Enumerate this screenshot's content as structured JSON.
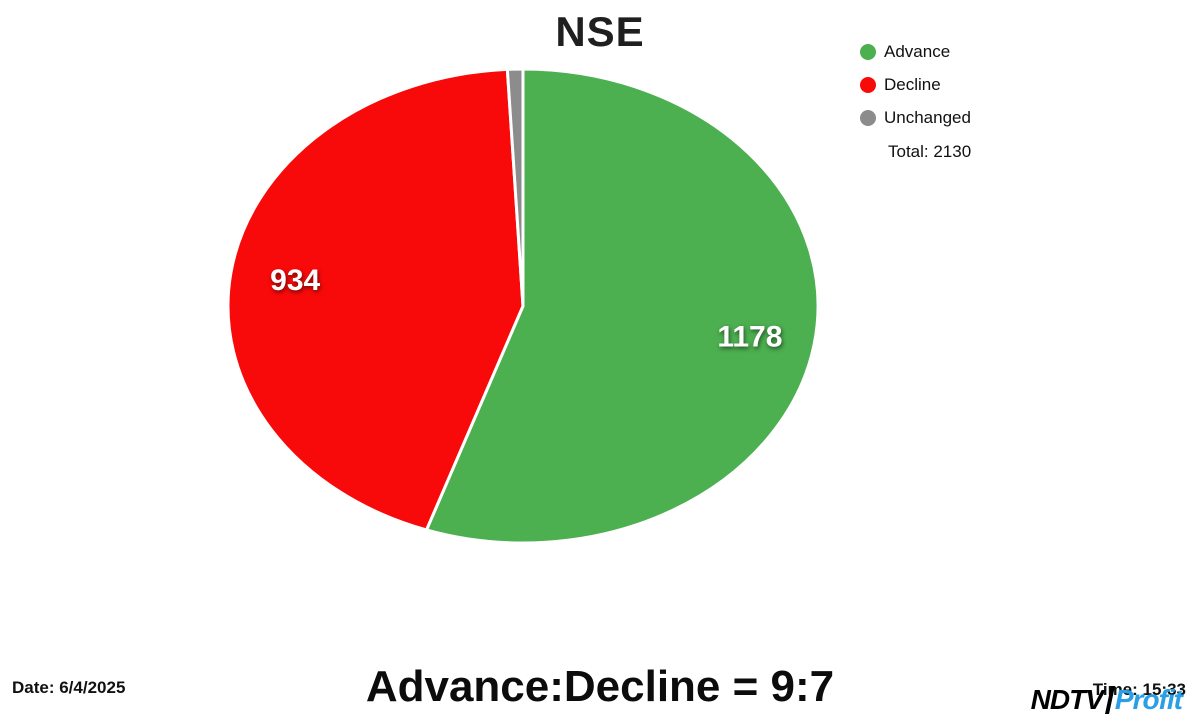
{
  "chart_data": {
    "type": "pie",
    "title": "NSE",
    "series": [
      {
        "name": "Advance",
        "value": 1178,
        "color": "#4CAF50",
        "label": "1178"
      },
      {
        "name": "Decline",
        "value": 934,
        "color": "#F90A0A",
        "label": "934"
      },
      {
        "name": "Unchanged",
        "value": 18,
        "color": "#8C8C8C",
        "label": ""
      }
    ],
    "total": 2130,
    "total_label": "Total: 2130",
    "legend_position": "top-right",
    "start_angle": "top",
    "direction": "clockwise"
  },
  "legend": {
    "items": [
      {
        "label": "Advance",
        "color": "#4CAF50"
      },
      {
        "label": "Decline",
        "color": "#F90A0A"
      },
      {
        "label": "Unchanged",
        "color": "#8C8C8C"
      }
    ],
    "total_label": "Total: 2130"
  },
  "footer": {
    "date_label": "Date: 6/4/2025",
    "ratio_text": "Advance:Decline = 9:7",
    "time_label": "Time: 15:33",
    "logo_ndtv": "NDTV",
    "logo_profit": "Profit"
  }
}
